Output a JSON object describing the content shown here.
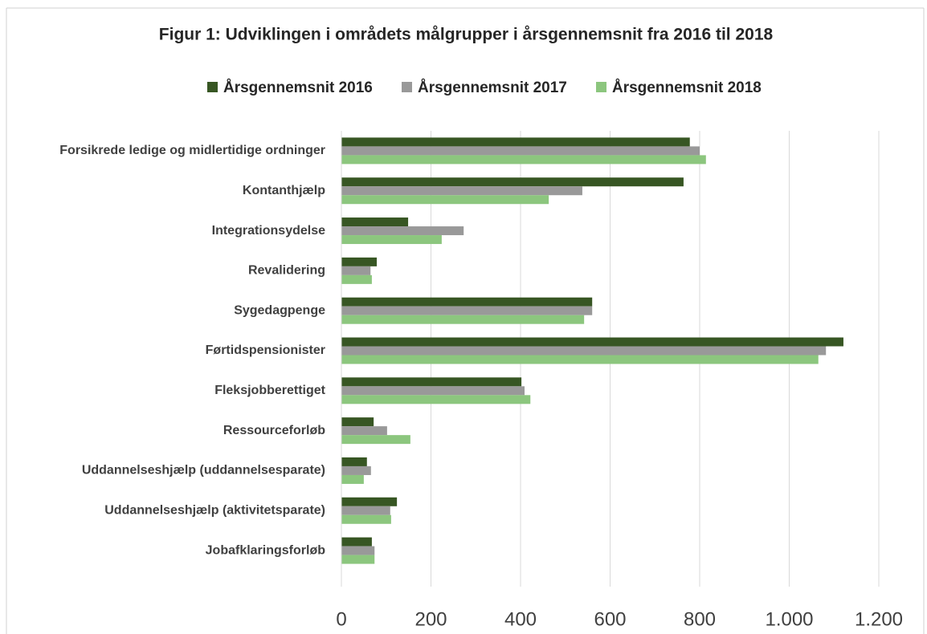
{
  "chart_data": {
    "type": "bar",
    "orientation": "horizontal",
    "title": "Figur 1: Udviklingen i områdets målgrupper i årsgennemsnit fra 2016 til 2018",
    "categories": [
      "Forsikrede ledige og midlertidige ordninger",
      "Kontanthjælp",
      "Integrationsydelse",
      "Revalidering",
      "Sygedagpenge",
      "Førtidspensionister",
      "Fleksjobberettiget",
      "Ressourceforløb",
      "Uddannelseshjælp (uddannelsesparate)",
      "Uddannelseshjælp (aktivitetsparate)",
      "Jobafklaringsforløb"
    ],
    "series": [
      {
        "name": "Årsgennemsnit 2016",
        "color": "#375623",
        "values": [
          778,
          764,
          149,
          79,
          560,
          1121,
          402,
          72,
          57,
          124,
          68
        ]
      },
      {
        "name": "Årsgennemsnit 2017",
        "color": "#999999",
        "values": [
          800,
          538,
          273,
          65,
          560,
          1082,
          409,
          102,
          66,
          109,
          74
        ]
      },
      {
        "name": "Årsgennemsnit 2018",
        "color": "#8cc67e",
        "values": [
          814,
          463,
          224,
          68,
          542,
          1065,
          422,
          154,
          50,
          111,
          74
        ]
      }
    ],
    "xlim": [
      0,
      1200
    ],
    "xticks": [
      0,
      200,
      400,
      600,
      800,
      {
        "value": 1000,
        "label": "1.000"
      },
      {
        "value": 1200,
        "label": "1.200"
      }
    ],
    "grid": true,
    "legend": "top"
  }
}
